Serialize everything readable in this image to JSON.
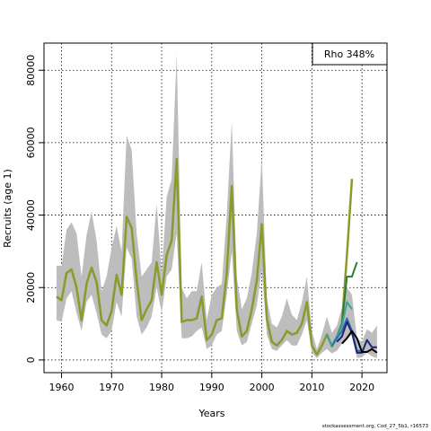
{
  "chart_data": {
    "type": "line",
    "xlabel": "Years",
    "ylabel": "Recruits (age 1)",
    "xlim": [
      1956.5,
      2025
    ],
    "ylim": [
      -3500,
      87500
    ],
    "x_ticks": [
      1960,
      1970,
      1980,
      1990,
      2000,
      2010,
      2020
    ],
    "y_ticks": [
      0,
      20000,
      40000,
      60000,
      80000
    ],
    "grid": true,
    "legend_text": "Rho 348%",
    "legend_position": "top-right",
    "footer": "stockassessment.org, Cod_27_5b1, r16573",
    "band": {
      "x": [
        1959,
        1960,
        1961,
        1962,
        1963,
        1964,
        1965,
        1966,
        1967,
        1968,
        1969,
        1970,
        1971,
        1972,
        1973,
        1974,
        1975,
        1976,
        1977,
        1978,
        1979,
        1980,
        1981,
        1982,
        1983,
        1984,
        1985,
        1986,
        1987,
        1988,
        1989,
        1990,
        1991,
        1992,
        1993,
        1994,
        1995,
        1996,
        1997,
        1998,
        1999,
        2000,
        2001,
        2002,
        2003,
        2004,
        2005,
        2006,
        2007,
        2008,
        2009,
        2010,
        2011,
        2012,
        2013,
        2014,
        2015,
        2016,
        2017,
        2018,
        2019,
        2020,
        2021,
        2022,
        2023
      ],
      "lower": [
        11000,
        10500,
        17000,
        19000,
        13000,
        8000,
        16000,
        18000,
        13000,
        7000,
        6000,
        8000,
        16000,
        12000,
        31000,
        28000,
        12000,
        7000,
        9000,
        12000,
        20000,
        13000,
        23000,
        25000,
        35000,
        6000,
        6000,
        6500,
        8000,
        9000,
        3000,
        4000,
        7000,
        8000,
        18000,
        30000,
        8000,
        4000,
        5000,
        10000,
        15000,
        25000,
        7000,
        3000,
        2500,
        4000,
        5500,
        4000,
        4000,
        7000,
        11000,
        2000,
        500,
        2000,
        3000,
        1800,
        2500,
        4500,
        6000,
        7000,
        600,
        700,
        2000,
        1000,
        500
      ],
      "upper": [
        26000,
        26000,
        36000,
        38000,
        35000,
        23000,
        34500,
        41000,
        33000,
        19000,
        23000,
        31000,
        37000,
        30000,
        62000,
        58000,
        35000,
        23000,
        25000,
        27000,
        43000,
        24000,
        45000,
        50000,
        84500,
        20000,
        17000,
        19000,
        19000,
        27000,
        11000,
        18000,
        20000,
        21000,
        40000,
        66000,
        23000,
        14000,
        17000,
        24000,
        35000,
        56000,
        17000,
        10000,
        9000,
        12000,
        17000,
        12500,
        11000,
        16000,
        23000,
        8000,
        3000,
        7000,
        12000,
        7500,
        9500,
        14500,
        20000,
        18000,
        6000,
        5000,
        8500,
        7500,
        9500
      ]
    },
    "series": [
      {
        "color": "#8b9a2a",
        "x": [
          1959,
          1960,
          1961,
          1962,
          1963,
          1964,
          1965,
          1966,
          1967,
          1968,
          1969,
          1970,
          1971,
          1972,
          1973,
          1974,
          1975,
          1976,
          1977,
          1978,
          1979,
          1980,
          1981,
          1982,
          1983,
          1984,
          1985,
          1986,
          1987,
          1988,
          1989,
          1990,
          1991,
          1992,
          1993,
          1994,
          1995,
          1996,
          1997,
          1998,
          1999,
          2000,
          2001,
          2002,
          2003,
          2004,
          2005,
          2006,
          2007,
          2008,
          2009,
          2010,
          2011,
          2012,
          2013,
          2014,
          2015,
          2016,
          2017,
          2018
        ],
        "values": [
          17500,
          16500,
          24000,
          25000,
          20000,
          11000,
          21000,
          25500,
          21500,
          11000,
          9500,
          13500,
          23500,
          18000,
          39500,
          36500,
          22000,
          11000,
          14000,
          16500,
          27000,
          18000,
          29000,
          33000,
          55500,
          10500,
          11000,
          11000,
          11500,
          17500,
          5500,
          7000,
          11000,
          11500,
          24000,
          48000,
          14000,
          6500,
          8000,
          14000,
          22000,
          37500,
          11500,
          5000,
          4000,
          5500,
          8000,
          7000,
          7500,
          10000,
          16000,
          4000,
          1500,
          4000,
          7000,
          3800,
          6500,
          10000,
          29000,
          50000
        ]
      },
      {
        "color": "#2e7d32",
        "x": [
          2013,
          2014,
          2015,
          2016,
          2017,
          2018,
          2019
        ],
        "values": [
          7000,
          3800,
          6500,
          10000,
          23000,
          23000,
          27000
        ]
      },
      {
        "color": "#3aa3a0",
        "x": [
          2013,
          2014,
          2015,
          2016,
          2017,
          2018
        ],
        "values": [
          7000,
          3800,
          6500,
          9500,
          16000,
          14000
        ]
      },
      {
        "color": "#2f6fb0",
        "x": [
          2014,
          2015,
          2016,
          2017,
          2018,
          2019,
          2020
        ],
        "values": [
          3800,
          6000,
          8000,
          11500,
          8000,
          2500,
          2500
        ]
      },
      {
        "color": "#1a237e",
        "x": [
          2015,
          2016,
          2017,
          2018,
          2019,
          2020,
          2021,
          2022,
          2023
        ],
        "values": [
          5000,
          6500,
          10500,
          7500,
          2000,
          2000,
          5500,
          3500,
          3500
        ]
      },
      {
        "color": "#000000",
        "x": [
          2016,
          2017,
          2018,
          2019,
          2020,
          2021,
          2022,
          2023
        ],
        "values": [
          4500,
          6000,
          8000,
          6000,
          2200,
          2200,
          3000,
          2000
        ]
      }
    ]
  }
}
